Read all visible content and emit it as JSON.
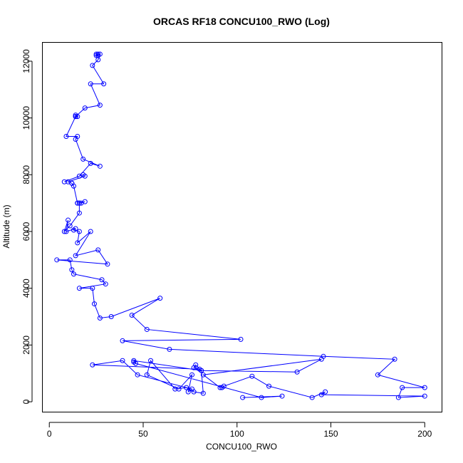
{
  "chart_data": {
    "type": "line",
    "title": "ORCAS RF18 CONCU100_RWO (Log)",
    "xlabel": "CONCU100_RWO",
    "ylabel": "Altitude (m)",
    "xlim": [
      -3.5,
      209
    ],
    "ylim": [
      -350,
      12650
    ],
    "xticks": [
      0,
      50,
      100,
      150,
      200
    ],
    "yticks": [
      0,
      2000,
      4000,
      6000,
      8000,
      10000,
      12000
    ],
    "grid": false,
    "color": "#0000ff",
    "series": [
      {
        "marker": "open-circle",
        "x": [
          25,
          26,
          26,
          25,
          27,
          26,
          23,
          29,
          22,
          27,
          19,
          14,
          14,
          15,
          14,
          9,
          15,
          14,
          18,
          27,
          22,
          16,
          8,
          18,
          19,
          10,
          12,
          12,
          13,
          15,
          17,
          19,
          15,
          16,
          16,
          16,
          11,
          8,
          10,
          9,
          14,
          13,
          16,
          15,
          22,
          14,
          26,
          31,
          4,
          11,
          12,
          13,
          28,
          30,
          16,
          23,
          24,
          27,
          33,
          59,
          44,
          52,
          102,
          39,
          64,
          146,
          184,
          175,
          200,
          188,
          186,
          200,
          145,
          147,
          140,
          117,
          108,
          93,
          92,
          91,
          82,
          145,
          132,
          81,
          78,
          77,
          80,
          23,
          39,
          47,
          76,
          74,
          76,
          69,
          52,
          54,
          67,
          73,
          77,
          82,
          81,
          45,
          45,
          46,
          113,
          124,
          103
        ],
        "y": [
          12250,
          12200,
          12250,
          12200,
          12250,
          12050,
          11850,
          11200,
          11200,
          10450,
          10350,
          10050,
          10100,
          10050,
          10050,
          9350,
          9350,
          9250,
          8550,
          8300,
          8400,
          7950,
          7750,
          8000,
          7950,
          7750,
          7700,
          7700,
          7600,
          7000,
          7000,
          7050,
          7000,
          7000,
          7000,
          6650,
          6200,
          6000,
          6400,
          6000,
          6100,
          6050,
          6000,
          5600,
          6000,
          5150,
          5350,
          4850,
          5000,
          5000,
          4650,
          4500,
          4300,
          4150,
          4000,
          4000,
          3450,
          2950,
          3000,
          3650,
          3050,
          2550,
          2200,
          2150,
          1850,
          1600,
          1500,
          950,
          500,
          500,
          150,
          200,
          250,
          350,
          150,
          550,
          900,
          550,
          500,
          500,
          950,
          1500,
          1050,
          1100,
          1300,
          1200,
          1150,
          1300,
          1450,
          950,
          450,
          350,
          950,
          450,
          950,
          1450,
          450,
          500,
          350,
          300,
          1100,
          1450,
          1400,
          1350,
          150,
          200,
          150
        ]
      }
    ]
  }
}
